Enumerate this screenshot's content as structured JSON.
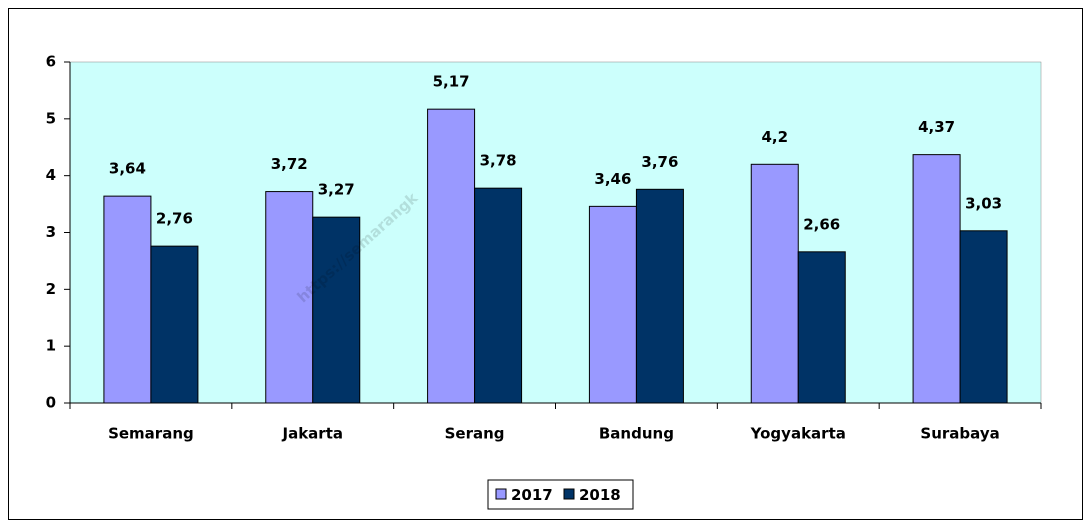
{
  "chart_data": {
    "type": "bar",
    "categories": [
      "Semarang",
      "Jakarta",
      "Serang",
      "Bandung",
      "Yogyakarta",
      "Surabaya"
    ],
    "series": [
      {
        "name": "2017",
        "color": "#9999ff",
        "values": [
          3.64,
          3.72,
          5.17,
          3.46,
          4.2,
          4.37
        ],
        "value_labels": [
          "3,64",
          "3,72",
          "5,17",
          "3,46",
          "4,2",
          "4,37"
        ]
      },
      {
        "name": "2018",
        "color": "#003366",
        "values": [
          2.76,
          3.27,
          3.78,
          3.76,
          2.66,
          3.03
        ],
        "value_labels": [
          "2,76",
          "3,27",
          "3,78",
          "3,76",
          "2,66",
          "3,03"
        ]
      }
    ],
    "ylim": [
      0,
      6
    ],
    "yticks": [
      0,
      1,
      2,
      3,
      4,
      5,
      6
    ],
    "plot_background": "#ccfffc",
    "legend": "bottom",
    "watermark": "https://semarangk"
  }
}
